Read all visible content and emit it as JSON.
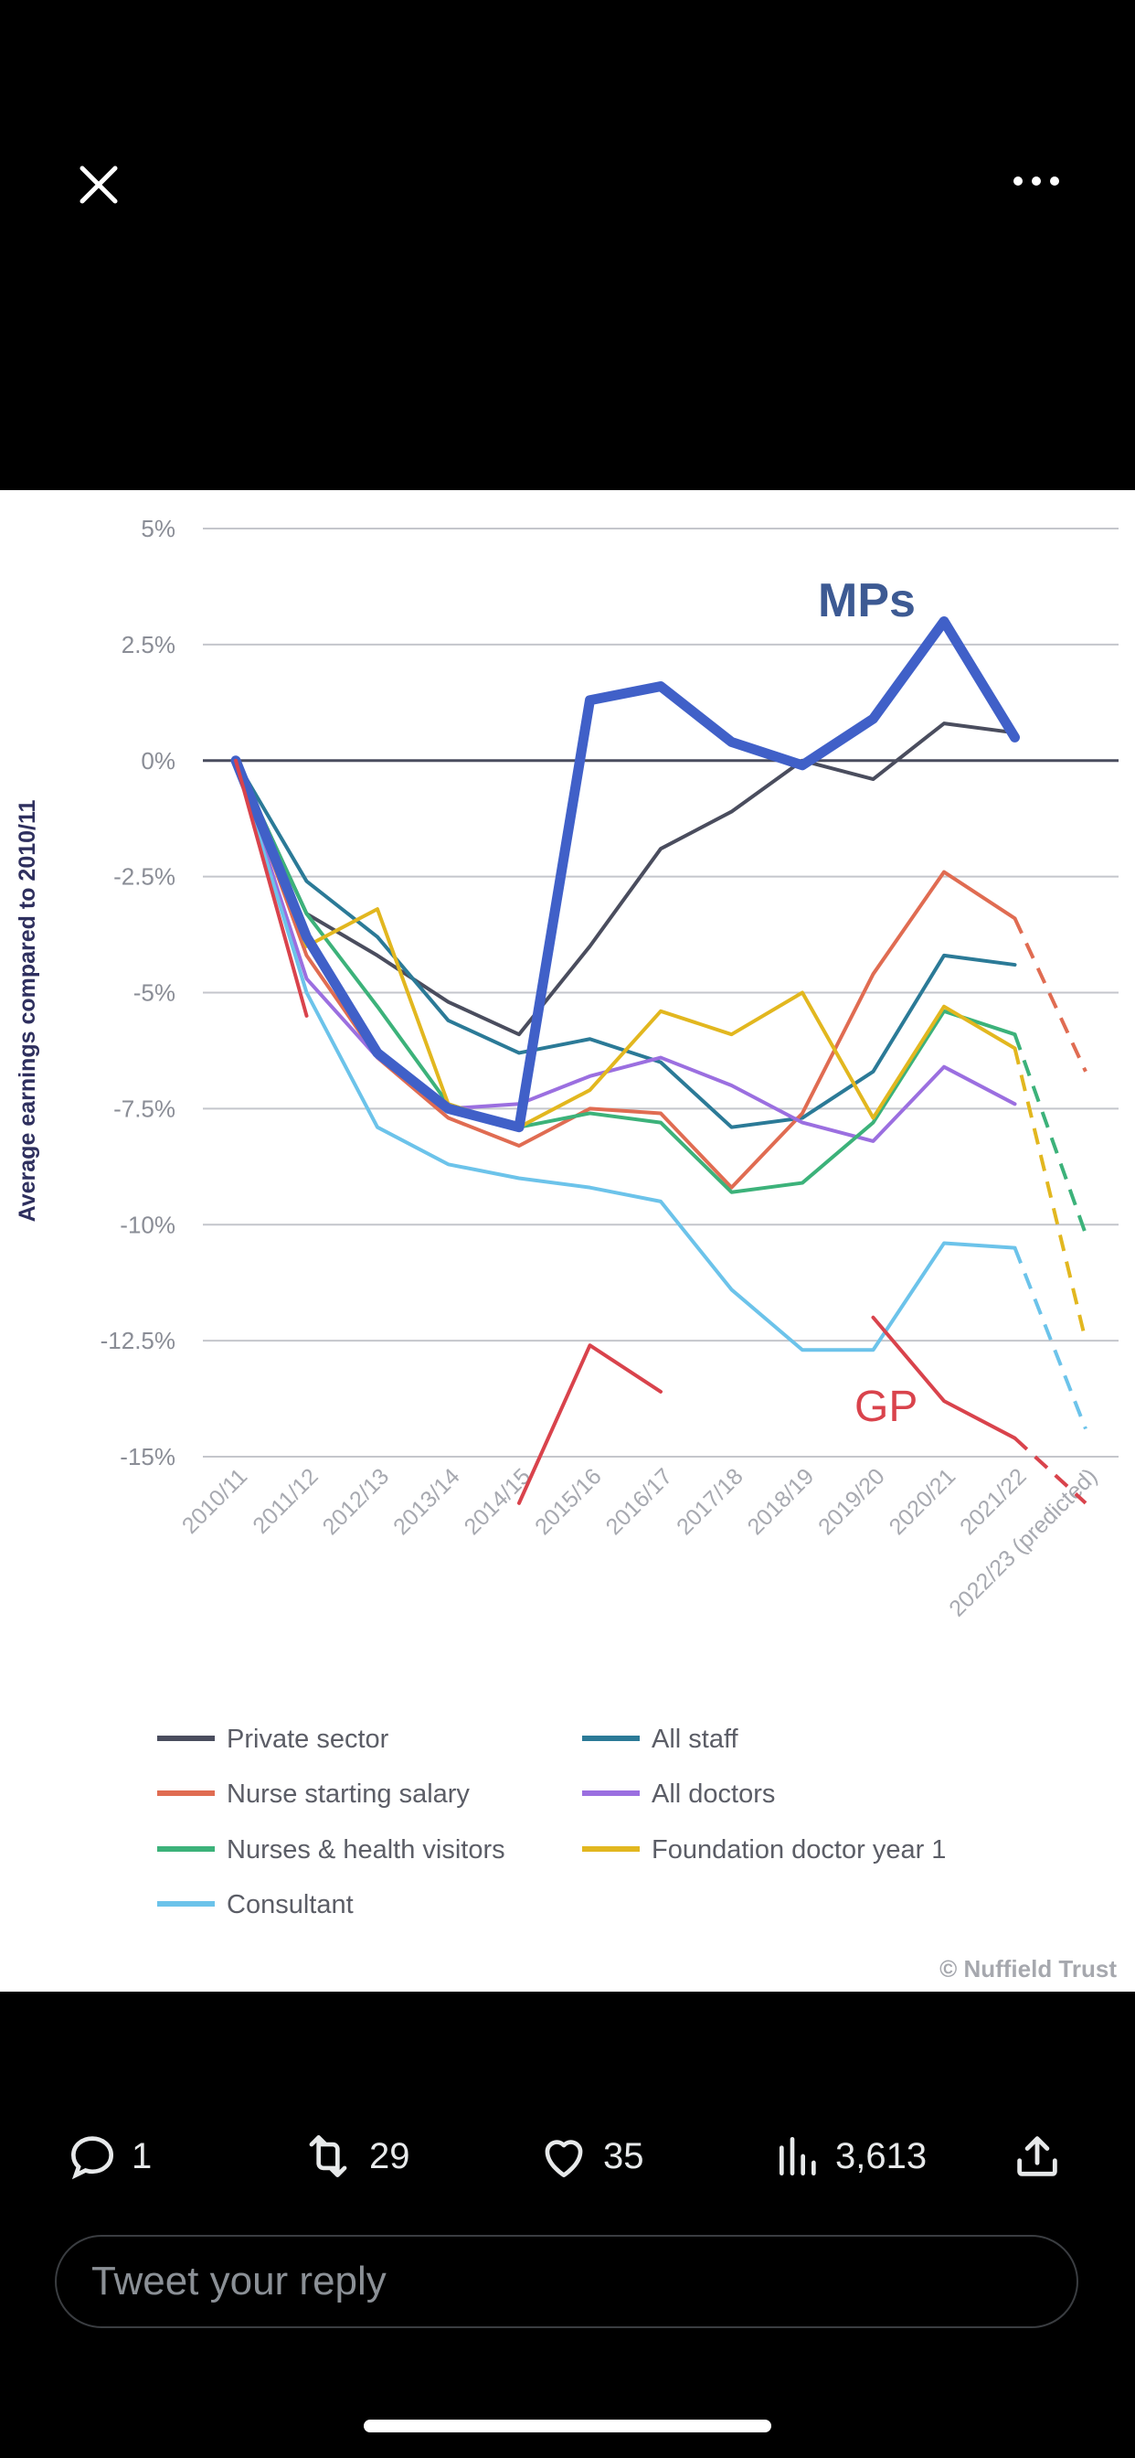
{
  "icons": {
    "close": "close-icon",
    "more": "more-icon",
    "reply": "reply-icon",
    "retweet": "retweet-icon",
    "like": "heart-icon",
    "views": "views-icon",
    "share": "share-icon"
  },
  "tweet_actions": {
    "replies": "1",
    "retweets": "29",
    "likes": "35",
    "views": "3,613"
  },
  "reply_box": {
    "placeholder": "Tweet your reply"
  },
  "chart_data": {
    "type": "line",
    "title": "",
    "ylabel": "Average earnings compared to 2010/11",
    "xlabel": "",
    "ylim": [
      -15,
      5
    ],
    "yticks": [
      "5%",
      "2.5%",
      "0%",
      "-2.5%",
      "-5%",
      "-7.5%",
      "-10%",
      "-12.5%",
      "-15%"
    ],
    "categories": [
      "2010/11",
      "2011/12",
      "2012/13",
      "2013/14",
      "2014/15",
      "2015/16",
      "2016/17",
      "2017/18",
      "2018/19",
      "2019/20",
      "2020/21",
      "2021/22",
      "2022/23 (predicted)"
    ],
    "series": [
      {
        "name": "Private sector",
        "color": "#4a4d5e",
        "values": [
          0,
          -3.3,
          -4.2,
          -5.2,
          -5.9,
          -4,
          -1.9,
          -1.1,
          0,
          -0.4,
          0.8,
          0.6,
          null
        ]
      },
      {
        "name": "All staff",
        "color": "#2b7a97",
        "values": [
          0,
          -2.6,
          -3.8,
          -5.6,
          -6.3,
          -6,
          -6.5,
          -7.9,
          -7.7,
          -6.7,
          -4.2,
          -4.4,
          null
        ]
      },
      {
        "name": "Nurse starting salary",
        "color": "#e06c52",
        "values": [
          0,
          -4.2,
          -6.4,
          -7.7,
          -8.3,
          -7.5,
          -7.6,
          -9.2,
          -7.6,
          -4.6,
          -2.4,
          -3.4,
          -6.7
        ]
      },
      {
        "name": "All doctors",
        "color": "#9b6fe0",
        "values": [
          0,
          -4.7,
          -6.4,
          -7.5,
          -7.4,
          -6.8,
          -6.4,
          -7,
          -7.8,
          -8.2,
          -6.6,
          -7.4,
          null
        ]
      },
      {
        "name": "Nurses & health visitors",
        "color": "#3cb27a",
        "values": [
          0,
          -3.3,
          -5.3,
          -7.4,
          -7.9,
          -7.6,
          -7.8,
          -9.3,
          -9.1,
          -7.8,
          -5.4,
          -5.9,
          -10.2
        ]
      },
      {
        "name": "Foundation doctor year 1",
        "color": "#e2b71f",
        "values": [
          0,
          -4,
          -3.2,
          -7.4,
          -7.9,
          -7.1,
          -5.4,
          -5.9,
          -5,
          -7.7,
          -5.3,
          -6.2,
          -12.5
        ]
      },
      {
        "name": "Consultant",
        "color": "#6cc3ea",
        "values": [
          0,
          -5,
          -7.9,
          -8.7,
          -9,
          -9.2,
          -9.5,
          -11.4,
          -12.7,
          -12.7,
          -10.4,
          -10.5,
          -14.4
        ]
      },
      {
        "name": "MPs",
        "color": "#4060c8",
        "values": [
          0,
          -3.8,
          -6.3,
          -7.5,
          -7.9,
          1.3,
          1.6,
          0.4,
          -0.1,
          0.9,
          3,
          0.5,
          null
        ]
      },
      {
        "name": "GP",
        "color": "#d9434c",
        "values": [
          0,
          -5.5,
          null,
          null,
          -16,
          -12.6,
          -13.6,
          null,
          null,
          -12,
          -13.8,
          -14.6,
          -16
        ]
      }
    ],
    "annotations": [
      "MPs",
      "GP"
    ],
    "legend_placement": "bottom",
    "source": "© Nuffield Trust",
    "grid": true
  }
}
